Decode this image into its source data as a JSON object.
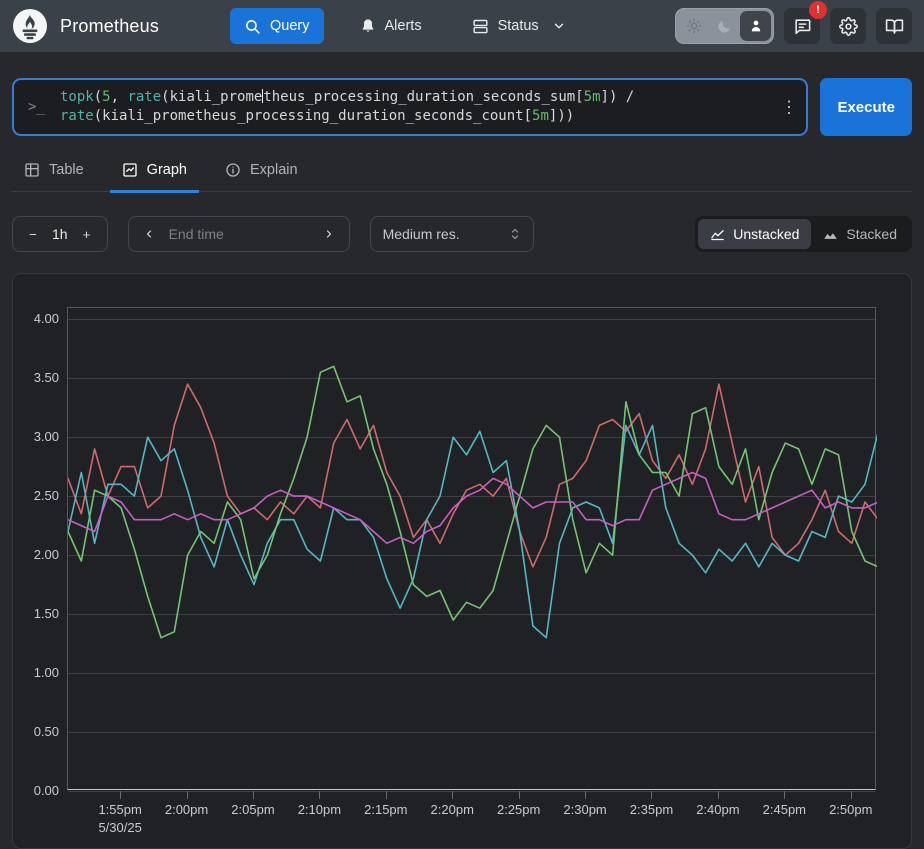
{
  "navbar": {
    "brand": "Prometheus",
    "query_label": "Query",
    "alerts_label": "Alerts",
    "status_label": "Status",
    "notification_badge": "!"
  },
  "query_panel": {
    "execute_label": "Execute",
    "expression": "topk(5, rate(kiali_prometheus_processing_duration_seconds_sum[5m]) / rate(kiali_prometheus_processing_duration_seconds_count[5m]))",
    "lines": [
      [
        {
          "text": "topk",
          "type": "func"
        },
        {
          "text": "(",
          "type": "plain"
        },
        {
          "text": "5",
          "type": "num"
        },
        {
          "text": ", ",
          "type": "plain"
        },
        {
          "text": "rate",
          "type": "func"
        },
        {
          "text": "(",
          "type": "plain"
        },
        {
          "text": "kiali_prome",
          "type": "plain"
        },
        {
          "text": "",
          "type": "caret"
        },
        {
          "text": "theus_processing_duration_seconds_sum",
          "type": "plain"
        },
        {
          "text": "[",
          "type": "plain"
        },
        {
          "text": "5m",
          "type": "num"
        },
        {
          "text": "]",
          "type": "plain"
        },
        {
          "text": ") /",
          "type": "plain"
        }
      ],
      [
        {
          "text": "rate",
          "type": "func"
        },
        {
          "text": "(",
          "type": "plain"
        },
        {
          "text": "kiali_prometheus_processing_duration_seconds_count",
          "type": "plain"
        },
        {
          "text": "[",
          "type": "plain"
        },
        {
          "text": "5m",
          "type": "num"
        },
        {
          "text": "]",
          "type": "plain"
        },
        {
          "text": "))",
          "type": "plain"
        }
      ]
    ],
    "kebab": "⋮"
  },
  "tabs": {
    "table": "Table",
    "graph": "Graph",
    "explain": "Explain"
  },
  "controls": {
    "range": "1h",
    "minus": "−",
    "plus": "+",
    "end_time_placeholder": "End time",
    "resolution": "Medium res.",
    "unstacked_label": "Unstacked",
    "stacked_label": "Stacked"
  },
  "colors": {
    "accent_blue": "#1a73d9",
    "tab_underline": "#2f81de",
    "badge_red": "#e03131",
    "grid": "#3d3f43",
    "axis_bottom": "#cbc7ab"
  },
  "chart_data": {
    "type": "line",
    "title": "",
    "xlabel": "",
    "ylabel": "",
    "legend": "none",
    "grid": "horizontal",
    "ylim": [
      0,
      4.095
    ],
    "xlim": [
      0,
      60.9
    ],
    "y_tick_values": [
      0.0,
      0.5,
      1.0,
      1.5,
      2.0,
      2.5,
      3.0,
      3.5,
      4.0
    ],
    "y_tick_labels": [
      "0.00",
      "0.50",
      "1.00",
      "1.50",
      "2.00",
      "2.50",
      "3.00",
      "3.50",
      "4.00"
    ],
    "x_tick_minutes": [
      4,
      9,
      14,
      19,
      24,
      29,
      34,
      39,
      44,
      49,
      54,
      59
    ],
    "x_tick_labels": [
      "1:55pm",
      "2:00pm",
      "2:05pm",
      "2:10pm",
      "2:15pm",
      "2:20pm",
      "2:25pm",
      "2:30pm",
      "2:35pm",
      "2:40pm",
      "2:45pm",
      "2:50pm"
    ],
    "x_date_label": "5/30/25",
    "x_step_minutes": 1,
    "series": [
      {
        "name": "series-1-salmon",
        "color": "#cf6a6e",
        "values": [
          2.65,
          2.35,
          2.9,
          2.5,
          2.75,
          2.75,
          2.4,
          2.5,
          3.1,
          3.45,
          3.25,
          2.95,
          2.5,
          2.35,
          2.4,
          2.3,
          2.45,
          2.35,
          2.5,
          2.4,
          2.95,
          3.15,
          2.9,
          3.1,
          2.7,
          2.5,
          2.15,
          2.3,
          2.1,
          2.35,
          2.55,
          2.6,
          2.5,
          2.65,
          2.2,
          1.9,
          2.15,
          2.6,
          2.65,
          2.8,
          3.1,
          3.15,
          3.05,
          3.2,
          2.8,
          2.65,
          2.85,
          2.6,
          2.9,
          3.45,
          2.95,
          2.45,
          2.75,
          2.15,
          2.0,
          2.1,
          2.3,
          2.55,
          2.2,
          2.1,
          2.45,
          2.3
        ]
      },
      {
        "name": "series-2-teal",
        "color": "#56b6c3",
        "values": [
          2.2,
          2.7,
          2.1,
          2.6,
          2.6,
          2.5,
          3.0,
          2.8,
          2.9,
          2.55,
          2.15,
          1.9,
          2.3,
          2.0,
          1.75,
          2.1,
          2.3,
          2.3,
          2.05,
          1.95,
          2.4,
          2.3,
          2.3,
          2.15,
          1.8,
          1.55,
          1.8,
          2.3,
          2.5,
          3.0,
          2.85,
          3.05,
          2.7,
          2.8,
          2.2,
          1.4,
          1.3,
          2.1,
          2.4,
          2.45,
          2.4,
          2.1,
          3.1,
          2.85,
          3.1,
          2.4,
          2.1,
          2.0,
          1.85,
          2.05,
          1.95,
          2.1,
          1.9,
          2.1,
          2.0,
          1.95,
          2.2,
          2.15,
          2.5,
          2.45,
          2.6,
          3.05
        ]
      },
      {
        "name": "series-3-green",
        "color": "#73c573",
        "values": [
          2.2,
          1.95,
          2.55,
          2.5,
          2.4,
          2.05,
          1.65,
          1.3,
          1.35,
          2.0,
          2.2,
          2.1,
          2.45,
          2.3,
          1.8,
          2.0,
          2.35,
          2.65,
          3.0,
          3.55,
          3.6,
          3.3,
          3.35,
          2.9,
          2.6,
          2.2,
          1.75,
          1.65,
          1.7,
          1.45,
          1.6,
          1.55,
          1.7,
          2.1,
          2.5,
          2.9,
          3.1,
          3.0,
          2.3,
          1.85,
          2.1,
          2.0,
          3.3,
          2.85,
          2.7,
          2.7,
          2.5,
          3.2,
          3.25,
          2.75,
          2.6,
          2.9,
          2.3,
          2.7,
          2.95,
          2.9,
          2.6,
          2.9,
          2.85,
          2.2,
          1.95,
          1.9
        ]
      },
      {
        "name": "series-4-magenta",
        "color": "#c75fc6",
        "values": [
          2.3,
          2.25,
          2.2,
          2.5,
          2.45,
          2.3,
          2.3,
          2.3,
          2.35,
          2.3,
          2.35,
          2.3,
          2.3,
          2.35,
          2.4,
          2.5,
          2.55,
          2.5,
          2.5,
          2.45,
          2.4,
          2.35,
          2.3,
          2.2,
          2.1,
          2.15,
          2.1,
          2.2,
          2.25,
          2.4,
          2.5,
          2.55,
          2.65,
          2.6,
          2.5,
          2.4,
          2.45,
          2.45,
          2.45,
          2.3,
          2.3,
          2.25,
          2.3,
          2.3,
          2.55,
          2.6,
          2.65,
          2.7,
          2.65,
          2.35,
          2.3,
          2.3,
          2.35,
          2.4,
          2.45,
          2.5,
          2.55,
          2.4,
          2.45,
          2.4,
          2.4,
          2.45
        ]
      }
    ]
  }
}
